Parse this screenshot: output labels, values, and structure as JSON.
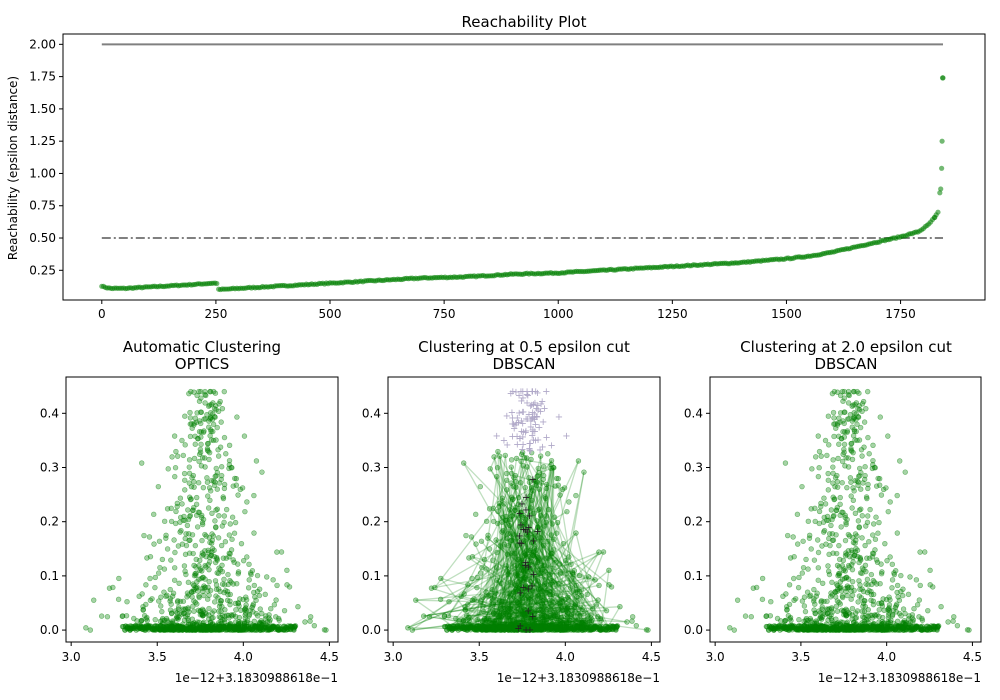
{
  "chart_data": [
    {
      "type": "scatter",
      "title": "Reachability Plot",
      "xlabel": "",
      "ylabel": "Reachability (epsilon distance)",
      "xlim": [
        -85,
        1935
      ],
      "ylim": [
        0.02,
        2.08
      ],
      "xticks": [
        0,
        250,
        500,
        750,
        1000,
        1250,
        1500,
        1750
      ],
      "yticks": [
        0.25,
        0.5,
        0.75,
        1.0,
        1.25,
        1.5,
        1.75,
        2.0
      ],
      "ytick_labels": [
        "0.25",
        "0.50",
        "0.75",
        "1.00",
        "1.25",
        "1.50",
        "1.75",
        "2.00"
      ],
      "color": "#008000",
      "reference_lines": [
        {
          "y": 2.0,
          "style": "solid",
          "color": "#808080",
          "x": [
            0,
            1843
          ]
        },
        {
          "y": 0.5,
          "style": "dashdot",
          "color": "#808080",
          "x": [
            0,
            1843
          ]
        }
      ],
      "series": [
        {
          "x": [
            0,
            5,
            20,
            50,
            100,
            150,
            200,
            240,
            252,
            255,
            300,
            400,
            500,
            600,
            700,
            800,
            900,
            1000,
            1100,
            1200,
            1300,
            1400,
            1500,
            1550,
            1600,
            1650,
            1700,
            1750,
            1790,
            1810,
            1825,
            1832,
            1836,
            1838,
            1840,
            1841,
            1842,
            1843
          ],
          "y": [
            0.13,
            0.12,
            0.11,
            0.11,
            0.12,
            0.13,
            0.14,
            0.15,
            0.15,
            0.1,
            0.11,
            0.13,
            0.15,
            0.17,
            0.19,
            0.2,
            0.22,
            0.23,
            0.25,
            0.27,
            0.29,
            0.31,
            0.34,
            0.36,
            0.39,
            0.43,
            0.47,
            0.51,
            0.55,
            0.6,
            0.66,
            0.7,
            0.85,
            0.88,
            1.04,
            1.25,
            1.74,
            1.74
          ]
        }
      ]
    },
    {
      "type": "scatter",
      "title": "Automatic Clustering",
      "subtitle": "OPTICS",
      "xlim": [
        2.97,
        4.55
      ],
      "ylim": [
        -0.022,
        0.467
      ],
      "xticks": [
        3.0,
        3.5,
        4.0,
        4.5
      ],
      "xtick_labels": [
        "3.0",
        "3.5",
        "4.0",
        "4.5"
      ],
      "yticks": [
        0.0,
        0.1,
        0.2,
        0.3,
        0.4
      ],
      "ytick_labels": [
        "0.0",
        "0.1",
        "0.2",
        "0.3",
        "0.4"
      ],
      "x_offset_text": "1e−12+3.1830988618e−1",
      "color": "#008000"
    },
    {
      "type": "scatter",
      "title": "Clustering at 0.5 epsilon cut",
      "subtitle": "DBSCAN",
      "xlim": [
        2.97,
        4.55
      ],
      "ylim": [
        -0.022,
        0.467
      ],
      "xticks": [
        3.0,
        3.5,
        4.0,
        4.5
      ],
      "xtick_labels": [
        "3.0",
        "3.5",
        "4.0",
        "4.5"
      ],
      "yticks": [
        0.0,
        0.1,
        0.2,
        0.3,
        0.4
      ],
      "ytick_labels": [
        "0.0",
        "0.1",
        "0.2",
        "0.3",
        "0.4"
      ],
      "x_offset_text": "1e−12+3.1830988618e−1",
      "color": "#008000",
      "noise_color": "#b0a8c8"
    },
    {
      "type": "scatter",
      "title": "Clustering at 2.0 epsilon cut",
      "subtitle": "DBSCAN",
      "xlim": [
        2.97,
        4.55
      ],
      "ylim": [
        -0.022,
        0.467
      ],
      "xticks": [
        3.0,
        3.5,
        4.0,
        4.5
      ],
      "xtick_labels": [
        "3.0",
        "3.5",
        "4.0",
        "4.5"
      ],
      "yticks": [
        0.0,
        0.1,
        0.2,
        0.3,
        0.4
      ],
      "ytick_labels": [
        "0.0",
        "0.1",
        "0.2",
        "0.3",
        "0.4"
      ],
      "x_offset_text": "1e−12+3.1830988618e−1",
      "color": "#008000"
    }
  ]
}
